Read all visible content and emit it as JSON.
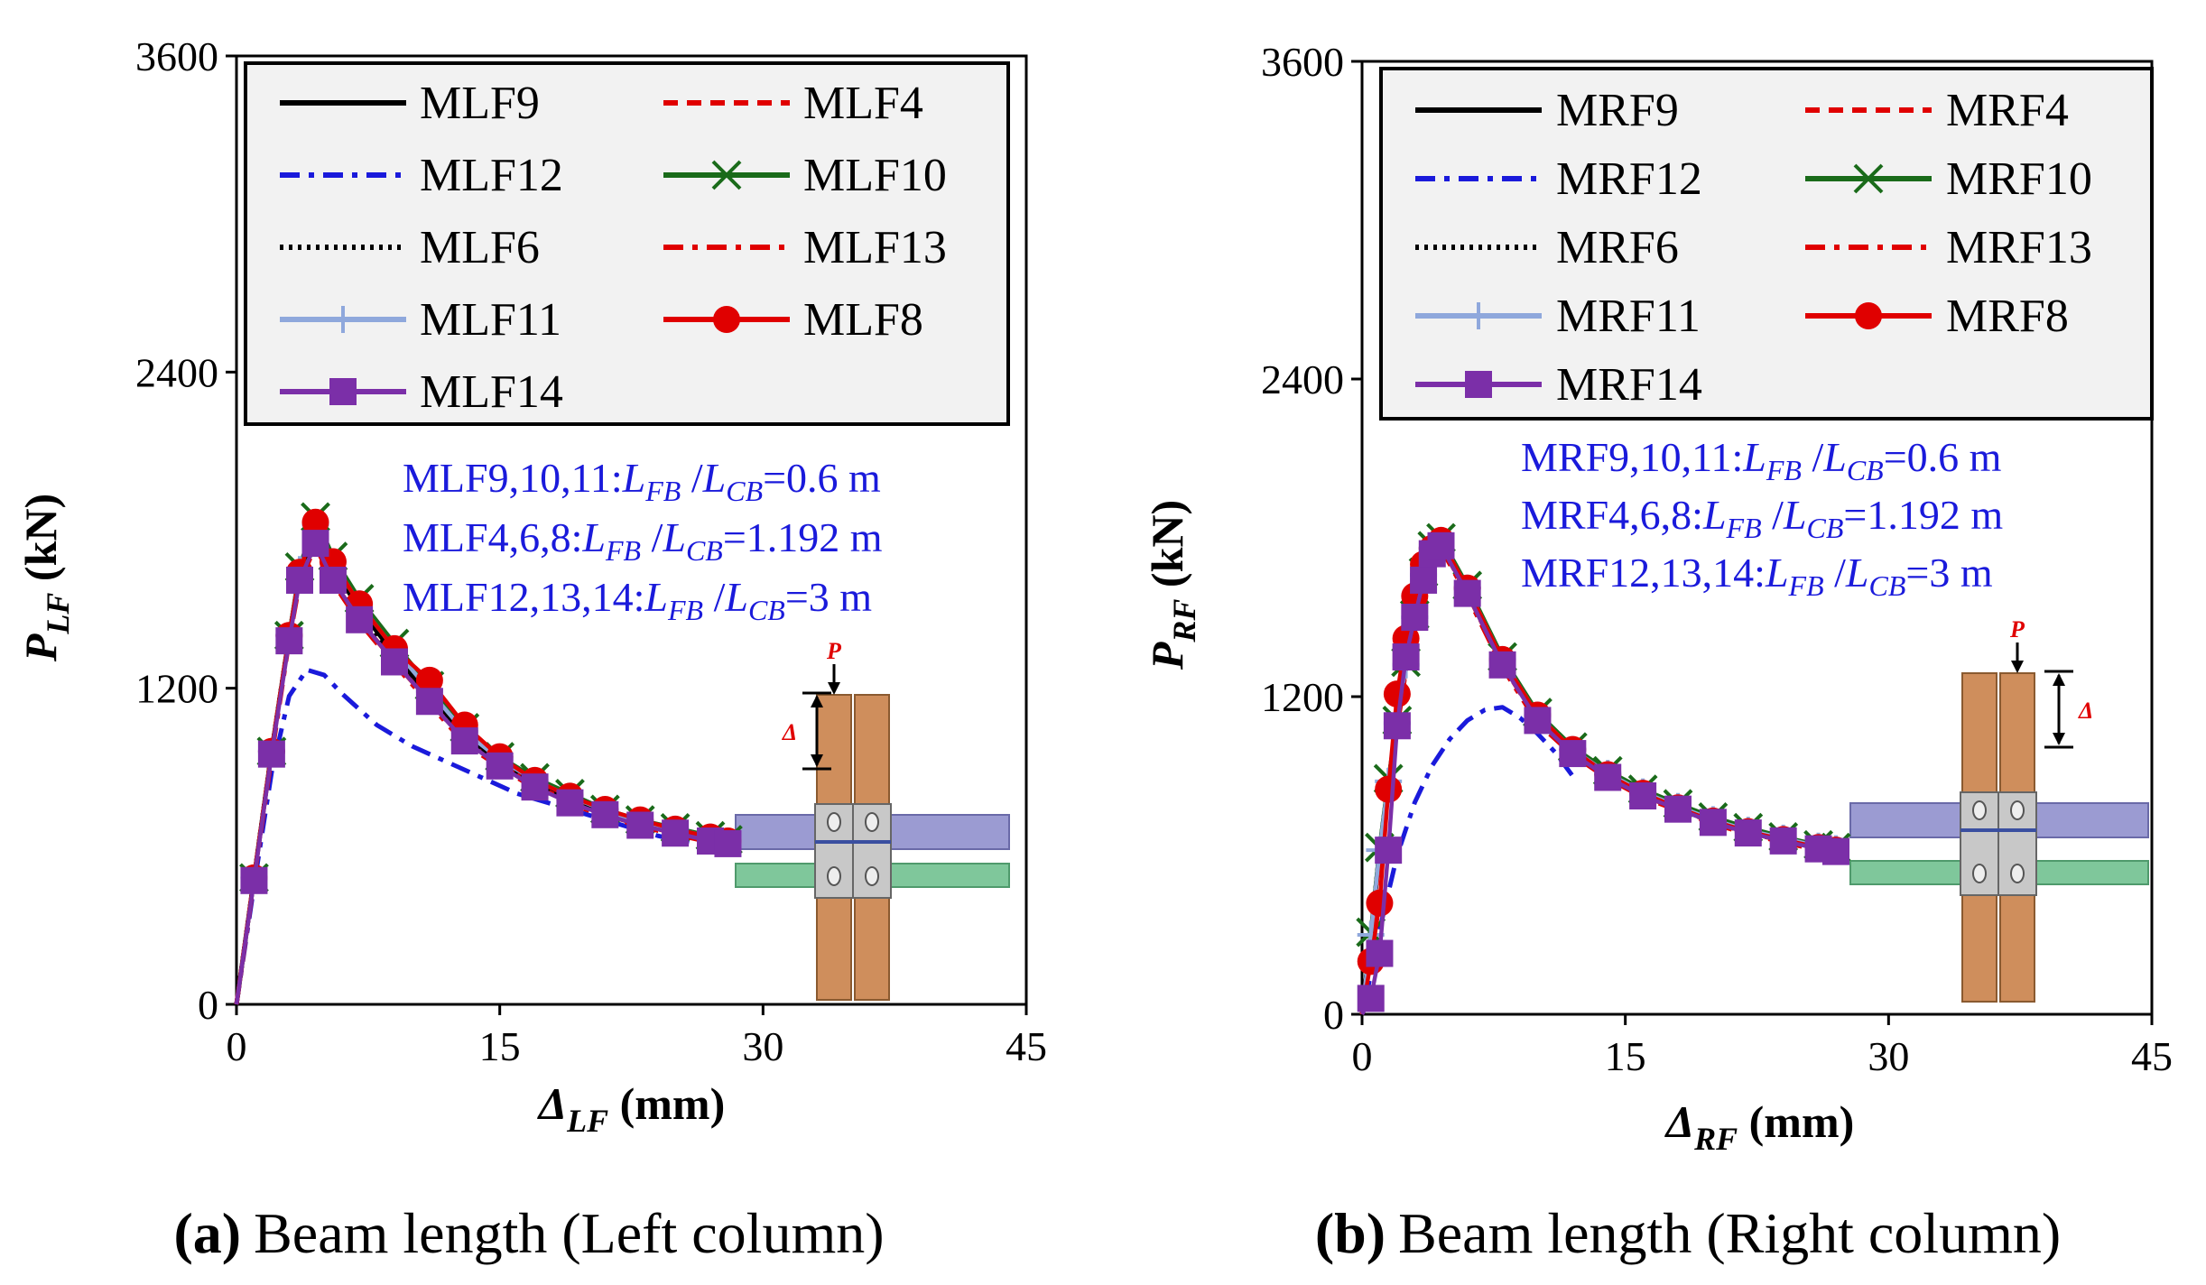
{
  "figure": {
    "captions": [
      {
        "id": "a",
        "label": "(a)",
        "text": "Beam length (Left column)"
      },
      {
        "id": "b",
        "label": "(b)",
        "text": "Beam length (Right column)"
      }
    ]
  },
  "chart_data": [
    {
      "type": "line",
      "id": "a",
      "ylabel": "P_LF (kN)",
      "ylabel_main": "P",
      "ylabel_sub": "LF",
      "ylabel_unit": "(kN)",
      "xlabel": "Δ_LF (mm)",
      "xlabel_main": "Δ",
      "xlabel_sub": "LF",
      "xlabel_unit": "(mm)",
      "xlim": [
        0,
        45
      ],
      "ylim": [
        0,
        3600
      ],
      "xticks": [
        0,
        15,
        30,
        45
      ],
      "yticks": [
        0,
        1200,
        2400,
        3600
      ],
      "legend_position": "top",
      "annotations": [
        {
          "prefix": "MLF9,10,11:",
          "value": "=0.6 m"
        },
        {
          "prefix": "MLF4,6,8:",
          "value": "=1.192 m"
        },
        {
          "prefix": "MLF12,13,14:",
          "value": "=3 m"
        }
      ],
      "annotation_ratio": {
        "a": "L",
        "a_sub": "FB",
        "sep": " /",
        "b": "L",
        "b_sub": "CB"
      },
      "inset": {
        "load_label": "P",
        "disp_label": "Δ"
      },
      "series": [
        {
          "name": "MLF9",
          "color": "#000000",
          "dash": "",
          "marker": "none",
          "x": [
            0,
            1,
            2,
            3,
            3.6,
            4.5,
            5.5,
            7,
            9,
            11,
            13,
            15,
            17,
            19,
            21,
            23,
            25,
            27,
            28
          ],
          "y": [
            0,
            480,
            960,
            1400,
            1640,
            1790,
            1660,
            1500,
            1330,
            1170,
            1020,
            920,
            840,
            780,
            730,
            690,
            660,
            630,
            620
          ]
        },
        {
          "name": "MLF4",
          "color": "#e00000",
          "dash": "16,10",
          "marker": "none",
          "x": [
            0,
            1,
            2,
            3,
            3.6,
            4.5,
            5.5,
            7,
            9,
            11,
            13,
            15,
            17,
            19,
            21,
            23,
            25,
            27,
            28
          ],
          "y": [
            0,
            480,
            960,
            1400,
            1620,
            1760,
            1620,
            1460,
            1300,
            1150,
            1000,
            910,
            830,
            770,
            720,
            680,
            650,
            620,
            610
          ]
        },
        {
          "name": "MLF12",
          "color": "#1a1adb",
          "dash": "22,10,6,10",
          "marker": "none",
          "x": [
            0,
            1,
            2,
            3,
            4,
            5,
            6,
            8,
            10,
            12,
            14,
            16,
            18,
            20,
            22,
            24,
            26,
            28
          ],
          "y": [
            0,
            450,
            880,
            1170,
            1270,
            1250,
            1180,
            1060,
            980,
            920,
            860,
            800,
            760,
            720,
            680,
            640,
            610,
            580
          ]
        },
        {
          "name": "MLF10",
          "color": "#1a6b1a",
          "dash": "",
          "marker": "x",
          "x": [
            0,
            1,
            2,
            3,
            3.6,
            4.5,
            5.5,
            7,
            9,
            11,
            13,
            15,
            17,
            19,
            21,
            23,
            25,
            27,
            28
          ],
          "y": [
            0,
            480,
            960,
            1400,
            1660,
            1850,
            1700,
            1540,
            1370,
            1210,
            1050,
            940,
            860,
            800,
            740,
            700,
            670,
            640,
            625
          ]
        },
        {
          "name": "MLF6",
          "color": "#000000",
          "dash": "4,6",
          "marker": "none",
          "x": [
            0,
            1,
            2,
            3,
            3.6,
            4.5,
            5.5,
            7,
            9,
            11,
            13,
            15,
            17,
            19,
            21,
            23,
            25,
            27,
            28
          ],
          "y": [
            0,
            480,
            960,
            1400,
            1630,
            1770,
            1640,
            1480,
            1310,
            1160,
            1010,
            915,
            835,
            775,
            725,
            685,
            655,
            625,
            615
          ]
        },
        {
          "name": "MLF13",
          "color": "#e00000",
          "dash": "22,10,6,10",
          "marker": "none",
          "x": [
            0,
            1,
            2,
            3,
            3.6,
            4.5,
            5.5,
            7,
            9,
            11,
            13,
            15,
            17,
            19,
            21,
            23,
            25,
            27,
            28
          ],
          "y": [
            0,
            470,
            940,
            1380,
            1600,
            1740,
            1600,
            1450,
            1290,
            1140,
            990,
            900,
            820,
            760,
            715,
            675,
            645,
            615,
            605
          ]
        },
        {
          "name": "MLF11",
          "color": "#8fa8dc",
          "dash": "",
          "marker": "plus",
          "x": [
            0,
            1,
            2,
            3,
            3.6,
            4.5,
            5.5,
            7,
            9,
            11,
            13,
            15,
            17,
            19,
            21,
            23,
            25,
            27,
            28
          ],
          "y": [
            0,
            480,
            960,
            1400,
            1650,
            1820,
            1680,
            1520,
            1350,
            1190,
            1035,
            930,
            850,
            790,
            735,
            695,
            665,
            635,
            620
          ]
        },
        {
          "name": "MLF8",
          "color": "#e00000",
          "dash": "",
          "marker": "circle",
          "x": [
            0,
            1,
            2,
            3,
            3.6,
            4.5,
            5.5,
            7,
            9,
            11,
            13,
            15,
            17,
            19,
            21,
            23,
            25,
            27,
            28
          ],
          "y": [
            0,
            480,
            960,
            1400,
            1640,
            1830,
            1680,
            1520,
            1350,
            1230,
            1060,
            940,
            850,
            790,
            740,
            700,
            665,
            635,
            620
          ]
        },
        {
          "name": "MLF14",
          "color": "#7b2fa8",
          "dash": "",
          "marker": "square",
          "x": [
            0,
            1,
            2,
            3,
            3.6,
            4.5,
            5.5,
            7,
            9,
            11,
            13,
            15,
            17,
            19,
            21,
            23,
            25,
            27,
            28
          ],
          "y": [
            0,
            470,
            950,
            1380,
            1610,
            1750,
            1610,
            1460,
            1300,
            1150,
            1000,
            905,
            825,
            765,
            720,
            680,
            650,
            620,
            610
          ]
        }
      ]
    },
    {
      "type": "line",
      "id": "b",
      "ylabel": "P_RF (kN)",
      "ylabel_main": "P",
      "ylabel_sub": "RF",
      "ylabel_unit": "(kN)",
      "xlabel": "Δ_RF (mm)",
      "xlabel_main": "Δ",
      "xlabel_sub": "RF",
      "xlabel_unit": "(mm)",
      "xlim": [
        0,
        45
      ],
      "ylim": [
        0,
        3600
      ],
      "xticks": [
        0,
        15,
        30,
        45
      ],
      "yticks": [
        0,
        1200,
        2400,
        3600
      ],
      "legend_position": "top",
      "annotations": [
        {
          "prefix": "MRF9,10,11:",
          "value": "=0.6 m"
        },
        {
          "prefix": "MRF4,6,8:",
          "value": "=1.192 m"
        },
        {
          "prefix": "MRF12,13,14:",
          "value": "=3 m"
        }
      ],
      "annotation_ratio": {
        "a": "L",
        "a_sub": "FB",
        "sep": " /",
        "b": "L",
        "b_sub": "CB"
      },
      "inset": {
        "load_label": "P",
        "disp_label": "Δ"
      },
      "series": [
        {
          "name": "MRF9",
          "color": "#000000",
          "dash": "",
          "marker": "none",
          "x": [
            0,
            0.5,
            1,
            1.5,
            2,
            2.5,
            3,
            3.5,
            4,
            4.5,
            6,
            8,
            10,
            12,
            14,
            16,
            18,
            20,
            22,
            24,
            26,
            27
          ],
          "y": [
            0,
            300,
            620,
            880,
            1100,
            1320,
            1500,
            1660,
            1760,
            1780,
            1600,
            1330,
            1120,
            990,
            900,
            830,
            780,
            730,
            690,
            660,
            630,
            620
          ]
        },
        {
          "name": "MRF4",
          "color": "#e00000",
          "dash": "16,10",
          "marker": "none",
          "x": [
            0,
            0.5,
            1,
            1.5,
            2,
            2.5,
            3,
            3.5,
            4,
            4.5,
            6,
            8,
            10,
            12,
            14,
            16,
            18,
            20,
            22,
            24,
            26,
            27
          ],
          "y": [
            0,
            290,
            610,
            870,
            1090,
            1310,
            1490,
            1650,
            1750,
            1770,
            1590,
            1320,
            1110,
            985,
            895,
            825,
            775,
            725,
            685,
            655,
            625,
            615
          ]
        },
        {
          "name": "MRF12",
          "color": "#1a1adb",
          "dash": "22,10,6,10",
          "marker": "none",
          "x": [
            0,
            0.5,
            1,
            2,
            3,
            4,
            5,
            6,
            7,
            8,
            9,
            10,
            11,
            12
          ],
          "y": [
            0,
            150,
            320,
            600,
            800,
            940,
            1040,
            1110,
            1150,
            1160,
            1120,
            1060,
            990,
            900
          ]
        },
        {
          "name": "MRF10",
          "color": "#1a6b1a",
          "dash": "",
          "marker": "x",
          "x": [
            0,
            0.5,
            1,
            1.5,
            2,
            2.5,
            3,
            3.5,
            4,
            4.5,
            6,
            8,
            10,
            12,
            14,
            16,
            18,
            20,
            22,
            24,
            26,
            27
          ],
          "y": [
            0,
            310,
            630,
            890,
            1110,
            1330,
            1510,
            1670,
            1770,
            1800,
            1620,
            1350,
            1140,
            1010,
            920,
            850,
            795,
            745,
            705,
            670,
            640,
            630
          ]
        },
        {
          "name": "MRF6",
          "color": "#000000",
          "dash": "4,6",
          "marker": "none",
          "x": [
            0,
            0.5,
            1,
            1.5,
            2,
            2.5,
            3,
            3.5,
            4,
            4.5,
            6,
            8,
            10,
            12,
            14,
            16,
            18,
            20,
            22,
            24,
            26,
            27
          ],
          "y": [
            0,
            295,
            615,
            875,
            1095,
            1315,
            1495,
            1655,
            1755,
            1775,
            1595,
            1325,
            1115,
            988,
            898,
            828,
            778,
            728,
            688,
            658,
            628,
            618
          ]
        },
        {
          "name": "MRF13",
          "color": "#e00000",
          "dash": "22,10,6,10",
          "marker": "none",
          "x": [
            0,
            0.5,
            1,
            1.5,
            2,
            2.5,
            3,
            3.5,
            4,
            4.5,
            6,
            8,
            10,
            12,
            14,
            16,
            18,
            20,
            22,
            24,
            26,
            27
          ],
          "y": [
            0,
            285,
            600,
            860,
            1080,
            1300,
            1480,
            1640,
            1740,
            1760,
            1580,
            1310,
            1100,
            980,
            890,
            820,
            770,
            720,
            680,
            650,
            620,
            610
          ]
        },
        {
          "name": "MRF11",
          "color": "#8fa8dc",
          "dash": "",
          "marker": "plus",
          "x": [
            0,
            0.5,
            1,
            1.5,
            2,
            2.5,
            3,
            3.5,
            4,
            4.5,
            6,
            8,
            10,
            12,
            14,
            16,
            18,
            20,
            22,
            24,
            26,
            27
          ],
          "y": [
            0,
            300,
            620,
            880,
            1100,
            1320,
            1500,
            1660,
            1760,
            1790,
            1610,
            1340,
            1130,
            1000,
            910,
            840,
            785,
            735,
            695,
            665,
            635,
            625
          ]
        },
        {
          "name": "MRF8",
          "color": "#e00000",
          "dash": "",
          "marker": "circle",
          "x": [
            0,
            0.5,
            1,
            1.5,
            2,
            2.5,
            3,
            3.5,
            4,
            4.5,
            6,
            8,
            10,
            12,
            14,
            16,
            18,
            20,
            22,
            24,
            26,
            27
          ],
          "y": [
            0,
            200,
            420,
            850,
            1210,
            1420,
            1580,
            1700,
            1760,
            1790,
            1610,
            1340,
            1130,
            1000,
            905,
            835,
            780,
            730,
            690,
            660,
            630,
            620
          ]
        },
        {
          "name": "MRF14",
          "color": "#7b2fa8",
          "dash": "",
          "marker": "square",
          "x": [
            0,
            0.5,
            1,
            1.5,
            2,
            2.5,
            3,
            3.5,
            4,
            4.5,
            6,
            8,
            10,
            12,
            14,
            16,
            18,
            20,
            22,
            24,
            26,
            27
          ],
          "y": [
            0,
            60,
            230,
            620,
            1090,
            1350,
            1500,
            1640,
            1740,
            1770,
            1590,
            1320,
            1110,
            985,
            895,
            825,
            775,
            725,
            685,
            655,
            625,
            615
          ]
        }
      ]
    }
  ]
}
